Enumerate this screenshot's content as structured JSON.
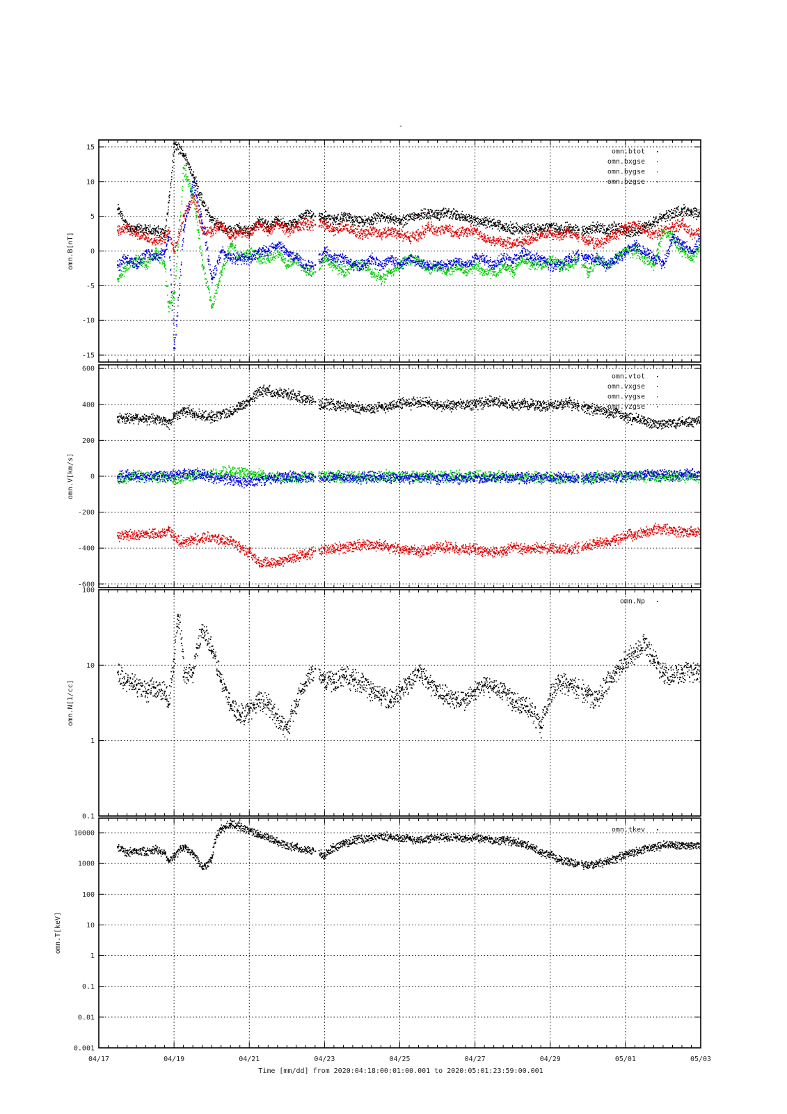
{
  "page": {
    "title": "-",
    "xlabel": "Time [mm/dd]  from 2020:04:18:00:01:00.001  to  2020:05:01:23:59:00.001"
  },
  "colors": {
    "black": "#000000",
    "red": "#dd0000",
    "green": "#00cc00",
    "blue": "#0000dd"
  },
  "x_axis": {
    "range": [
      "04/17",
      "05/03"
    ],
    "tick_labels": [
      "04/17",
      "04/19",
      "04/21",
      "04/23",
      "04/25",
      "04/27",
      "04/29",
      "05/01",
      "05/03"
    ],
    "data_range": [
      "04/18 00:01",
      "05/01 23:59"
    ]
  },
  "chart_data": [
    {
      "type": "scatter",
      "ylabel": "omn.B[nT]",
      "ylim": [
        -16,
        16
      ],
      "yscale": "linear",
      "yticks": [
        -15,
        -10,
        -5,
        0,
        5,
        10,
        15
      ],
      "ytick_labels": [
        "-15",
        "-10",
        "-5",
        "0",
        "5",
        "10",
        "15"
      ],
      "grid": true,
      "legend": "top-right",
      "x": [
        1.0,
        1.5,
        2.0,
        2.5,
        3.0,
        3.5,
        3.7,
        4.0,
        4.5,
        5.0,
        5.5,
        6.0,
        6.5,
        7.0,
        7.5,
        8.0,
        8.5,
        9.0,
        9.5,
        10.0,
        10.5,
        11.0,
        11.5,
        12.0,
        12.5,
        13.0,
        13.5,
        14.0,
        14.5,
        15.0,
        15.5,
        16.0,
        16.5,
        17.0,
        17.5,
        18.0,
        18.5,
        19.0,
        19.5,
        20.0,
        20.5,
        21.0,
        21.5,
        22.0,
        22.5,
        23.0,
        23.5,
        24.0,
        24.5,
        25.0,
        25.5,
        26.0,
        26.5,
        27.0,
        27.5,
        28.0,
        28.5,
        29.0,
        29.5,
        30.0,
        30.5,
        31.0,
        31.5,
        32.0
      ],
      "series": [
        {
          "name": "omn.btot",
          "color": "#000000",
          "values": [
            6,
            3.5,
            3.2,
            3,
            3,
            2.7,
            7,
            15.5,
            14,
            11,
            7,
            4.5,
            3.5,
            3,
            3.4,
            2.8,
            4.5,
            3.5,
            4.5,
            3.6,
            4.2,
            5.5,
            5,
            5,
            4.5,
            5,
            4.5,
            4.2,
            4.5,
            5,
            4.8,
            4.2,
            5,
            5.3,
            5.5,
            5.2,
            5.6,
            5.2,
            4.8,
            4.5,
            4.2,
            4,
            3.5,
            3.3,
            3.2,
            3.4,
            3.2,
            3.6,
            3.2,
            3.4,
            3.0,
            3.2,
            3.5,
            3,
            3.6,
            2.8,
            3,
            3.5,
            4.2,
            5,
            5.5,
            6,
            5.5,
            5.5
          ]
        },
        {
          "name": "omn.bxgse",
          "color": "#dd0000",
          "values": [
            3,
            3.5,
            2.5,
            2,
            1.5,
            2,
            3,
            0,
            5,
            8,
            3,
            3,
            4,
            2,
            3,
            2.5,
            4,
            3,
            4,
            3,
            3.5,
            4,
            3.8,
            4,
            3,
            3.6,
            3,
            2.5,
            3,
            2.5,
            3,
            2.5,
            2,
            2.4,
            3.5,
            3,
            3.3,
            2.6,
            3,
            3,
            2,
            1.5,
            1.3,
            1.2,
            1.3,
            2,
            2.5,
            2.6,
            2.4,
            2.8,
            2,
            1.5,
            1,
            1.8,
            2.5,
            3.5,
            4,
            3,
            2.5,
            3,
            3.5,
            4,
            2.5,
            3
          ]
        },
        {
          "name": "omn.bygse",
          "color": "#00cc00",
          "values": [
            -4,
            -2,
            -1,
            -2,
            0,
            -2,
            -8,
            -6,
            12,
            8,
            -2,
            -8,
            -3,
            1,
            -1,
            0,
            -1,
            -1,
            0,
            -2,
            -1,
            -3,
            -3,
            -1,
            -2,
            -3,
            -2,
            -2,
            -3,
            -4,
            -3,
            -2,
            -1,
            -1.5,
            -2.5,
            -2,
            -3,
            -2,
            -3,
            -2,
            -3,
            -3,
            -2,
            -3,
            -1,
            -2,
            -2,
            -1,
            -2,
            -2,
            -1,
            -3,
            -1,
            -2,
            -1,
            0,
            0,
            -1,
            -2,
            3,
            2,
            0,
            -1,
            1
          ]
        },
        {
          "name": "omn.bzgse",
          "color": "#0000dd",
          "values": [
            -2,
            -1,
            -2,
            0,
            -1,
            0,
            2,
            -14,
            3,
            10,
            4,
            -4,
            0,
            -1,
            -1,
            -1,
            0,
            0,
            1,
            0,
            -1,
            -2,
            -2,
            0,
            -1,
            -1,
            -2,
            -2,
            -1,
            -2,
            -1,
            -2,
            -1,
            -1.5,
            -2,
            -2,
            -2,
            -1.5,
            -2,
            -1,
            -1,
            -2,
            -1,
            -1.5,
            0,
            -1,
            -1,
            -2,
            -2,
            -1,
            -0.5,
            -1,
            -1,
            -2,
            -1,
            0,
            1,
            0,
            -1,
            -2,
            2,
            1,
            0,
            2
          ]
        }
      ]
    },
    {
      "type": "scatter",
      "ylabel": "omn.V[km/s]",
      "ylim": [
        -620,
        620
      ],
      "yscale": "linear",
      "yticks": [
        -600,
        -400,
        -200,
        0,
        200,
        400,
        600
      ],
      "ytick_labels": [
        "-600",
        "-400",
        "-200",
        "0",
        "200",
        "400",
        "600"
      ],
      "grid": true,
      "legend": "top-right",
      "x": [
        1.0,
        1.5,
        2.0,
        2.5,
        3.0,
        3.5,
        3.7,
        4.0,
        4.5,
        5.0,
        5.5,
        6.0,
        6.5,
        7.0,
        7.5,
        8.0,
        8.5,
        9.0,
        9.5,
        10.0,
        10.5,
        11.0,
        11.5,
        12.0,
        12.5,
        13.0,
        13.5,
        14.0,
        14.5,
        15.0,
        15.5,
        16.0,
        16.5,
        17.0,
        17.5,
        18.0,
        18.5,
        19.0,
        19.5,
        20.0,
        20.5,
        21.0,
        21.5,
        22.0,
        22.5,
        23.0,
        23.5,
        24.0,
        24.5,
        25.0,
        25.5,
        26.0,
        26.5,
        27.0,
        27.5,
        28.0,
        28.5,
        29.0,
        29.5,
        30.0,
        30.5,
        31.0,
        31.5,
        32.0
      ],
      "series": [
        {
          "name": "omn.vtot",
          "color": "#000000",
          "values": [
            330,
            325,
            330,
            320,
            320,
            310,
            295,
            340,
            370,
            350,
            340,
            330,
            350,
            360,
            390,
            420,
            480,
            480,
            470,
            460,
            445,
            430,
            415,
            405,
            400,
            395,
            385,
            380,
            380,
            385,
            395,
            410,
            405,
            420,
            410,
            395,
            390,
            400,
            400,
            405,
            415,
            420,
            410,
            395,
            405,
            400,
            395,
            400,
            400,
            410,
            390,
            380,
            370,
            360,
            355,
            330,
            320,
            310,
            295,
            290,
            300,
            310,
            305,
            315
          ]
        },
        {
          "name": "omn.vxgse",
          "color": "#dd0000",
          "values": [
            -330,
            -325,
            -330,
            -320,
            -320,
            -310,
            -295,
            -340,
            -370,
            -350,
            -340,
            -330,
            -350,
            -360,
            -390,
            -420,
            -480,
            -480,
            -470,
            -460,
            -445,
            -430,
            -415,
            -405,
            -400,
            -395,
            -385,
            -380,
            -380,
            -385,
            -395,
            -410,
            -405,
            -420,
            -410,
            -395,
            -390,
            -400,
            -400,
            -405,
            -415,
            -420,
            -410,
            -395,
            -405,
            -400,
            -395,
            -400,
            -400,
            -410,
            -390,
            -380,
            -370,
            -360,
            -355,
            -330,
            -320,
            -310,
            -295,
            -290,
            -300,
            -310,
            -305,
            -315
          ]
        },
        {
          "name": "omn.vygse",
          "color": "#00cc00",
          "values": [
            -10,
            0,
            5,
            0,
            0,
            0,
            -5,
            -25,
            0,
            10,
            10,
            15,
            20,
            30,
            30,
            20,
            10,
            0,
            -10,
            -5,
            -5,
            0,
            0,
            5,
            0,
            0,
            5,
            0,
            0,
            5,
            5,
            0,
            5,
            0,
            5,
            5,
            0,
            5,
            0,
            10,
            5,
            0,
            5,
            0,
            0,
            0,
            -5,
            -5,
            -10,
            -5,
            -10,
            -5,
            0,
            0,
            0,
            0,
            5,
            0,
            5,
            0,
            0,
            5,
            0,
            0
          ]
        },
        {
          "name": "omn.vzgse",
          "color": "#0000dd",
          "values": [
            0,
            5,
            0,
            0,
            5,
            5,
            0,
            10,
            20,
            20,
            10,
            0,
            -10,
            -20,
            -30,
            -30,
            -20,
            -10,
            -10,
            0,
            0,
            0,
            -5,
            -5,
            0,
            -5,
            -10,
            -5,
            0,
            -5,
            -10,
            -5,
            -10,
            -5,
            -5,
            -10,
            -5,
            -10,
            -5,
            -5,
            -10,
            -5,
            0,
            -5,
            -5,
            -5,
            -5,
            -10,
            -5,
            -5,
            -5,
            -10,
            -5,
            0,
            0,
            5,
            5,
            10,
            10,
            10,
            5,
            10,
            15,
            10
          ]
        }
      ]
    },
    {
      "type": "scatter",
      "ylabel": "omn.N[1/cc]",
      "ylim": [
        0.1,
        100
      ],
      "yscale": "log",
      "yticks": [
        0.1,
        1,
        10,
        100
      ],
      "ytick_labels": [
        "0.1",
        "1",
        "10",
        "100"
      ],
      "grid": true,
      "legend": "top-right",
      "x": [
        1.0,
        1.5,
        2.0,
        2.5,
        3.0,
        3.5,
        3.7,
        4.0,
        4.2,
        4.5,
        5.0,
        5.5,
        6.0,
        6.5,
        7.0,
        7.5,
        8.0,
        8.5,
        9.0,
        9.5,
        10.0,
        10.5,
        11.0,
        11.5,
        12.0,
        12.5,
        13.0,
        13.5,
        14.0,
        14.5,
        15.0,
        15.5,
        16.0,
        16.5,
        17.0,
        17.5,
        18.0,
        18.5,
        19.0,
        19.5,
        20.0,
        20.5,
        21.0,
        21.5,
        22.0,
        22.5,
        23.0,
        23.5,
        24.0,
        24.5,
        25.0,
        25.5,
        26.0,
        26.5,
        27.0,
        27.5,
        28.0,
        28.5,
        29.0,
        29.5,
        30.0,
        30.5,
        31.0,
        31.5,
        32.0
      ],
      "series": [
        {
          "name": "omn.Np",
          "color": "#000000",
          "values": [
            8,
            6,
            5.5,
            4.5,
            5,
            4.5,
            3,
            12,
            45,
            7,
            8,
            30,
            15,
            6,
            3,
            2.2,
            2.5,
            3.5,
            3,
            2,
            1.4,
            3,
            6,
            9,
            6.5,
            6,
            7.5,
            6.5,
            6,
            4.5,
            4,
            3.5,
            4.5,
            6,
            8.5,
            6,
            4.5,
            4,
            3.5,
            3.5,
            4.5,
            5.5,
            5,
            4.5,
            3.5,
            3,
            2.4,
            1.5,
            4,
            6,
            5.5,
            5,
            4,
            3.5,
            6,
            8,
            12,
            15,
            20,
            12,
            8,
            7.5,
            7.8,
            8,
            8
          ]
        }
      ]
    },
    {
      "type": "scatter",
      "ylabel": "omn.T[keV]",
      "ylim": [
        0.001,
        30000
      ],
      "yscale": "log",
      "yticks": [
        0.001,
        0.01,
        0.1,
        1,
        10,
        100,
        1000,
        10000
      ],
      "ytick_labels": [
        "0.001",
        "0.01",
        "0.1",
        "1",
        "10",
        "100",
        "1000",
        "10000"
      ],
      "grid": true,
      "legend": "top-right",
      "x": [
        1.0,
        1.5,
        2.0,
        2.5,
        3.0,
        3.5,
        3.7,
        4.0,
        4.5,
        5.0,
        5.5,
        6.0,
        6.5,
        7.0,
        7.5,
        8.0,
        8.5,
        9.0,
        9.5,
        10.0,
        10.5,
        11.0,
        11.5,
        12.0,
        12.5,
        13.0,
        13.5,
        14.0,
        14.5,
        15.0,
        15.5,
        16.0,
        16.5,
        17.0,
        17.5,
        18.0,
        18.5,
        19.0,
        19.5,
        20.0,
        20.5,
        21.0,
        21.5,
        22.0,
        22.5,
        23.0,
        23.5,
        24.0,
        24.5,
        25.0,
        25.5,
        26.0,
        26.5,
        27.0,
        27.5,
        28.0,
        28.5,
        29.0,
        29.5,
        30.0,
        30.5,
        31.0,
        31.5,
        32.0
      ],
      "series": [
        {
          "name": "omn.tkev",
          "color": "#000000",
          "values": [
            3500,
            2200,
            2800,
            2500,
            3000,
            2200,
            1300,
            1800,
            3500,
            2000,
            700,
            1500,
            14000,
            20000,
            16000,
            12000,
            9000,
            7000,
            5000,
            4000,
            3500,
            3000,
            2500,
            1800,
            3500,
            4500,
            6000,
            6500,
            7000,
            8000,
            7500,
            7000,
            6500,
            6000,
            6500,
            7000,
            7500,
            7000,
            6500,
            7000,
            6500,
            5500,
            6000,
            5500,
            4500,
            3500,
            2200,
            2000,
            1300,
            1200,
            1000,
            900,
            1000,
            1200,
            1500,
            2000,
            2500,
            3000,
            3500,
            4000,
            4200,
            4000,
            3800,
            4000
          ]
        }
      ]
    }
  ]
}
